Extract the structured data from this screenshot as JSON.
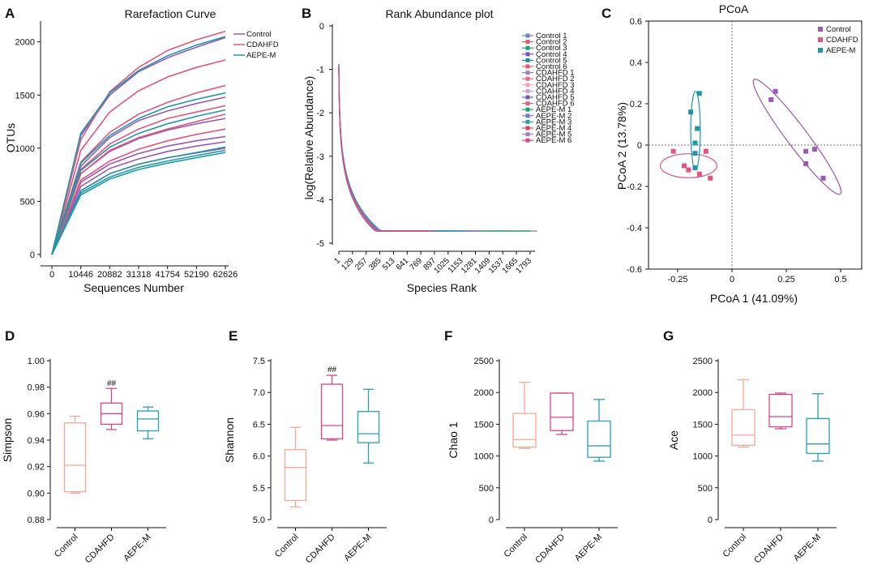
{
  "colors": {
    "control": "#9b59b6",
    "cdahfd": "#e2557f",
    "aepe": "#1f97a8",
    "control_box": "#f6a89b",
    "cdahfd_box": "#d6478a",
    "aepe_box": "#2a9eb3"
  },
  "chart_data": [
    {
      "panel": "A",
      "type": "line",
      "title": "Rarefaction Curve",
      "xlabel": "Sequences Number",
      "ylabel": "OTUs",
      "xticks": [
        "0",
        "10446",
        "20882",
        "31318",
        "41754",
        "52190",
        "62626"
      ],
      "yticks": [
        0,
        500,
        1000,
        1500,
        2000
      ],
      "xlim": [
        0,
        62626
      ],
      "ylim": [
        0,
        2150
      ],
      "legend": [
        "Control",
        "CDAHFD",
        "AEPE-M"
      ],
      "x": [
        0,
        10446,
        20882,
        31318,
        41754,
        52190,
        62626
      ],
      "series": [
        {
          "name": "Control 1",
          "group": "Control",
          "values": [
            0,
            1120,
            1500,
            1720,
            1850,
            1950,
            2040
          ]
        },
        {
          "name": "Control 2",
          "group": "Control",
          "values": [
            0,
            830,
            1100,
            1260,
            1350,
            1420,
            1480
          ]
        },
        {
          "name": "Control 3",
          "group": "Control",
          "values": [
            0,
            760,
            970,
            1090,
            1170,
            1230,
            1280
          ]
        },
        {
          "name": "Control 4",
          "group": "Control",
          "values": [
            0,
            680,
            850,
            950,
            1020,
            1070,
            1110
          ]
        },
        {
          "name": "Control 5",
          "group": "Control",
          "values": [
            0,
            600,
            760,
            850,
            910,
            955,
            1000
          ]
        },
        {
          "name": "Control 6",
          "group": "Control",
          "values": [
            0,
            640,
            810,
            900,
            970,
            1020,
            1060
          ]
        },
        {
          "name": "CDAHFD 1",
          "group": "CDAHFD",
          "values": [
            0,
            1080,
            1530,
            1760,
            1920,
            2020,
            2100
          ]
        },
        {
          "name": "CDAHFD 2",
          "group": "CDAHFD",
          "values": [
            0,
            980,
            1340,
            1540,
            1670,
            1760,
            1830
          ]
        },
        {
          "name": "CDAHFD 3",
          "group": "CDAHFD",
          "values": [
            0,
            870,
            1150,
            1320,
            1430,
            1520,
            1590
          ]
        },
        {
          "name": "CDAHFD 4",
          "group": "CDAHFD",
          "values": [
            0,
            800,
            1040,
            1180,
            1280,
            1340,
            1400
          ]
        },
        {
          "name": "CDAHFD 5",
          "group": "CDAHFD",
          "values": [
            0,
            760,
            980,
            1100,
            1180,
            1250,
            1320
          ]
        },
        {
          "name": "CDAHFD 6",
          "group": "CDAHFD",
          "values": [
            0,
            700,
            880,
            990,
            1070,
            1130,
            1180
          ]
        },
        {
          "name": "AEPE-M 1",
          "group": "AEPE-M",
          "values": [
            0,
            1140,
            1520,
            1730,
            1870,
            1970,
            2050
          ]
        },
        {
          "name": "AEPE-M 2",
          "group": "AEPE-M",
          "values": [
            0,
            860,
            1120,
            1280,
            1390,
            1460,
            1520
          ]
        },
        {
          "name": "AEPE-M 3",
          "group": "AEPE-M",
          "values": [
            0,
            790,
            1010,
            1140,
            1230,
            1300,
            1360
          ]
        },
        {
          "name": "AEPE-M 4",
          "group": "AEPE-M",
          "values": [
            0,
            600,
            760,
            850,
            910,
            960,
            1010
          ]
        },
        {
          "name": "AEPE-M 5",
          "group": "AEPE-M",
          "values": [
            0,
            580,
            730,
            820,
            880,
            930,
            980
          ]
        },
        {
          "name": "AEPE-M 6",
          "group": "AEPE-M",
          "values": [
            0,
            560,
            710,
            800,
            860,
            910,
            960
          ]
        }
      ]
    },
    {
      "panel": "B",
      "type": "line",
      "title": "Rank Abundance plot",
      "xlabel": "Species Rank",
      "ylabel": "log(Relative Abundance)",
      "xticks": [
        "1",
        "129",
        "257",
        "385",
        "513",
        "641",
        "769",
        "897",
        "1025",
        "1153",
        "1281",
        "1409",
        "1537",
        "1665",
        "1793"
      ],
      "xtick_values": [
        1,
        129,
        257,
        385,
        513,
        641,
        769,
        897,
        1025,
        1153,
        1281,
        1409,
        1537,
        1665,
        1793
      ],
      "yticks": [
        "0",
        "-1",
        "-2",
        "-3",
        "-4",
        "-5"
      ],
      "xlim": [
        1,
        1900
      ],
      "ylim": [
        -5,
        0
      ],
      "legend": [
        "Control 1",
        "Control 2",
        "Control 3",
        "Control 4",
        "Control 5",
        "Control 6",
        "CDAHFD 1",
        "CDAHFD 2",
        "CDAHFD 3",
        "CDAHFD 4",
        "CDAHFD 5",
        "CDAHFD 6",
        "AEPE-M 1",
        "AEPE-M 2",
        "AEPE-M 3",
        "AEPE-M 4",
        "AEPE-M 5",
        "AEPE-M 6"
      ],
      "legend_colors": [
        "#6e7fc9",
        "#e25a66",
        "#1f9e7a",
        "#7a58b8",
        "#1d8f9c",
        "#e25575",
        "#9b82c8",
        "#e06b8a",
        "#f2a5b8",
        "#c7a0d6",
        "#6a5fb5",
        "#e2607a",
        "#1f9e7a",
        "#6e7fc9",
        "#2a9eb3",
        "#d9435f",
        "#9b82c8",
        "#d6478a"
      ],
      "series": [
        {
          "name": "Control 1",
          "end_rank": 1860,
          "floor": -4.72
        },
        {
          "name": "Control 2",
          "end_rank": 1260,
          "floor": -4.72
        },
        {
          "name": "Control 3",
          "end_rank": 1080,
          "floor": -4.72
        },
        {
          "name": "Control 4",
          "end_rank": 960,
          "floor": -4.72
        },
        {
          "name": "Control 5",
          "end_rank": 900,
          "floor": -4.72
        },
        {
          "name": "Control 6",
          "end_rank": 940,
          "floor": -4.72
        },
        {
          "name": "CDAHFD 1",
          "end_rank": 1820,
          "floor": -4.72
        },
        {
          "name": "CDAHFD 2",
          "end_rank": 1620,
          "floor": -4.72
        },
        {
          "name": "CDAHFD 3",
          "end_rank": 1380,
          "floor": -4.72
        },
        {
          "name": "CDAHFD 4",
          "end_rank": 1200,
          "floor": -4.72
        },
        {
          "name": "CDAHFD 5",
          "end_rank": 1120,
          "floor": -4.72
        },
        {
          "name": "CDAHFD 6",
          "end_rank": 1000,
          "floor": -4.72
        },
        {
          "name": "AEPE-M 1",
          "end_rank": 1800,
          "floor": -4.72
        },
        {
          "name": "AEPE-M 2",
          "end_rank": 1320,
          "floor": -4.72
        },
        {
          "name": "AEPE-M 3",
          "end_rank": 1160,
          "floor": -4.72
        },
        {
          "name": "AEPE-M 4",
          "end_rank": 880,
          "floor": -4.72
        },
        {
          "name": "AEPE-M 5",
          "end_rank": 860,
          "floor": -4.72
        },
        {
          "name": "AEPE-M 6",
          "end_rank": 840,
          "floor": -4.72
        }
      ]
    },
    {
      "panel": "C",
      "type": "scatter",
      "title": "PCoA",
      "xlabel": "PCoA 1 (41.09%)",
      "ylabel": "PCoA 2 (13.78%)",
      "xticks": [
        "-0.25",
        "0",
        "0.25",
        "0.5"
      ],
      "xtick_values": [
        -0.25,
        0,
        0.25,
        0.5
      ],
      "yticks": [
        "0.6",
        "0.4",
        "0.2",
        "0",
        "-0.2",
        "-0.4",
        "-0.6"
      ],
      "ytick_values": [
        0.6,
        0.4,
        0.2,
        0,
        -0.2,
        -0.4,
        -0.6
      ],
      "xlim": [
        -0.38,
        0.6
      ],
      "ylim": [
        -0.6,
        0.6
      ],
      "legend": [
        "Control",
        "CDAHFD",
        "AEPE-M"
      ],
      "groups": [
        {
          "name": "Control",
          "points": [
            [
              0.18,
              0.22
            ],
            [
              0.2,
              0.26
            ],
            [
              0.34,
              -0.03
            ],
            [
              0.38,
              -0.02
            ],
            [
              0.34,
              -0.09
            ],
            [
              0.42,
              -0.16
            ]
          ],
          "ellipse": {
            "cx": 0.3,
            "cy": 0.04,
            "rx": 0.33,
            "ry": 0.05,
            "angle_deg": -53
          }
        },
        {
          "name": "CDAHFD",
          "points": [
            [
              -0.27,
              -0.03
            ],
            [
              -0.22,
              -0.1
            ],
            [
              -0.2,
              -0.12
            ],
            [
              -0.15,
              -0.14
            ],
            [
              -0.12,
              -0.03
            ],
            [
              -0.1,
              -0.16
            ]
          ],
          "ellipse": {
            "cx": -0.2,
            "cy": -0.1,
            "rx": 0.13,
            "ry": 0.058,
            "angle_deg": 0
          }
        },
        {
          "name": "AEPE-M",
          "points": [
            [
              -0.19,
              0.16
            ],
            [
              -0.15,
              0.25
            ],
            [
              -0.16,
              0.08
            ],
            [
              -0.17,
              0.01
            ],
            [
              -0.17,
              -0.04
            ],
            [
              -0.17,
              -0.11
            ]
          ],
          "ellipse": {
            "cx": -0.168,
            "cy": 0.07,
            "rx": 0.022,
            "ry": 0.19,
            "angle_deg": 0
          }
        }
      ]
    },
    {
      "panel": "D",
      "type": "box",
      "ylabel": "Simpson",
      "yticks": [
        "1.00",
        "0.98",
        "0.96",
        "0.94",
        "0.92",
        "0.90",
        "0.88"
      ],
      "ytick_values": [
        1.0,
        0.98,
        0.96,
        0.94,
        0.92,
        0.9,
        0.88
      ],
      "ylim": [
        0.88,
        1.0
      ],
      "categories": [
        "Control",
        "CDAHFD",
        "AEPE-M"
      ],
      "boxes": [
        {
          "min": 0.9,
          "q1": 0.901,
          "median": 0.921,
          "q3": 0.953,
          "max": 0.958
        },
        {
          "min": 0.948,
          "q1": 0.952,
          "median": 0.96,
          "q3": 0.968,
          "max": 0.979
        },
        {
          "min": 0.941,
          "q1": 0.947,
          "median": 0.956,
          "q3": 0.962,
          "max": 0.965
        }
      ],
      "annotation": {
        "text": "##",
        "category": 1,
        "y": 0.981
      }
    },
    {
      "panel": "E",
      "type": "box",
      "ylabel": "Shannon",
      "yticks": [
        "7.5",
        "7.0",
        "6.5",
        "6.0",
        "5.5",
        "5.0"
      ],
      "ytick_values": [
        7.5,
        7.0,
        6.5,
        6.0,
        5.5,
        5.0
      ],
      "ylim": [
        5.0,
        7.5
      ],
      "categories": [
        "Control",
        "CDAHFD",
        "AEPE-M"
      ],
      "boxes": [
        {
          "min": 5.2,
          "q1": 5.3,
          "median": 5.82,
          "q3": 6.1,
          "max": 6.45
        },
        {
          "min": 6.25,
          "q1": 6.27,
          "median": 6.48,
          "q3": 7.13,
          "max": 7.27
        },
        {
          "min": 5.89,
          "q1": 6.21,
          "median": 6.35,
          "q3": 6.7,
          "max": 7.05
        }
      ],
      "annotation": {
        "text": "##",
        "category": 1,
        "y": 7.32
      }
    },
    {
      "panel": "F",
      "type": "box",
      "ylabel": "Chao 1",
      "yticks": [
        "2500",
        "2000",
        "1500",
        "1000",
        "500",
        "0"
      ],
      "ytick_values": [
        2500,
        2000,
        1500,
        1000,
        500,
        0
      ],
      "ylim": [
        0,
        2500
      ],
      "categories": [
        "Control",
        "CDAHFD",
        "AEPE-M"
      ],
      "boxes": [
        {
          "min": 1120,
          "q1": 1140,
          "median": 1260,
          "q3": 1670,
          "max": 2160
        },
        {
          "min": 1340,
          "q1": 1400,
          "median": 1610,
          "q3": 1990,
          "max": 1990
        },
        {
          "min": 920,
          "q1": 980,
          "median": 1160,
          "q3": 1550,
          "max": 1890
        }
      ]
    },
    {
      "panel": "G",
      "type": "box",
      "ylabel": "Ace",
      "yticks": [
        "2500",
        "2000",
        "1500",
        "1000",
        "500",
        "0"
      ],
      "ytick_values": [
        2500,
        2000,
        1500,
        1000,
        500,
        0
      ],
      "ylim": [
        0,
        2500
      ],
      "categories": [
        "Control",
        "CDAHFD",
        "AEPE-M"
      ],
      "boxes": [
        {
          "min": 1140,
          "q1": 1170,
          "median": 1330,
          "q3": 1730,
          "max": 2200
        },
        {
          "min": 1430,
          "q1": 1460,
          "median": 1620,
          "q3": 1970,
          "max": 1990
        },
        {
          "min": 920,
          "q1": 1040,
          "median": 1190,
          "q3": 1590,
          "max": 1980
        }
      ]
    }
  ]
}
